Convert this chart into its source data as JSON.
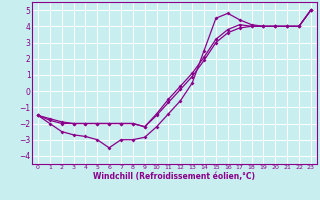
{
  "xlabel": "Windchill (Refroidissement éolien,°C)",
  "background_color": "#c8eef0",
  "grid_color": "#ffffff",
  "line_color": "#8b008b",
  "xlim": [
    -0.5,
    23.5
  ],
  "ylim": [
    -4.5,
    5.5
  ],
  "yticks": [
    -4,
    -3,
    -2,
    -1,
    0,
    1,
    2,
    3,
    4,
    5
  ],
  "xticks": [
    0,
    1,
    2,
    3,
    4,
    5,
    6,
    7,
    8,
    9,
    10,
    11,
    12,
    13,
    14,
    15,
    16,
    17,
    18,
    19,
    20,
    21,
    22,
    23
  ],
  "line1_x": [
    0,
    1,
    2,
    3,
    4,
    5,
    6,
    7,
    8,
    9,
    10,
    11,
    12,
    13,
    14,
    15,
    16,
    17,
    18,
    19,
    20,
    21,
    22,
    23
  ],
  "line1_y": [
    -1.5,
    -2.0,
    -2.5,
    -2.7,
    -2.8,
    -3.0,
    -3.5,
    -3.0,
    -3.0,
    -2.85,
    -2.2,
    -1.4,
    -0.6,
    0.5,
    2.5,
    4.5,
    4.8,
    4.4,
    4.1,
    4.0,
    4.0,
    4.0,
    4.0,
    5.0
  ],
  "line2_x": [
    0,
    9,
    23
  ],
  "line2_y": [
    -1.5,
    -2.2,
    5.0
  ],
  "line3_x": [
    0,
    9,
    23
  ],
  "line3_y": [
    -1.5,
    -2.2,
    5.0
  ],
  "line2_full_x": [
    0,
    1,
    2,
    3,
    4,
    5,
    6,
    7,
    8,
    9,
    10,
    11,
    12,
    13,
    14,
    15,
    16,
    17,
    18,
    19,
    20,
    21,
    22,
    23
  ],
  "line2_full_y": [
    -1.5,
    -1.8,
    -2.0,
    -2.0,
    -2.0,
    -2.0,
    -2.0,
    -2.0,
    -2.0,
    -2.2,
    -1.5,
    -0.7,
    0.1,
    0.9,
    1.9,
    3.0,
    3.6,
    3.9,
    4.0,
    4.0,
    4.0,
    4.0,
    4.0,
    5.0
  ],
  "line3_full_y": [
    -1.5,
    -1.7,
    -1.9,
    -2.0,
    -2.0,
    -2.0,
    -2.0,
    -2.0,
    -2.0,
    -2.2,
    -1.4,
    -0.5,
    0.3,
    1.1,
    2.1,
    3.2,
    3.8,
    4.1,
    4.0,
    4.0,
    4.0,
    4.0,
    4.0,
    5.0
  ]
}
